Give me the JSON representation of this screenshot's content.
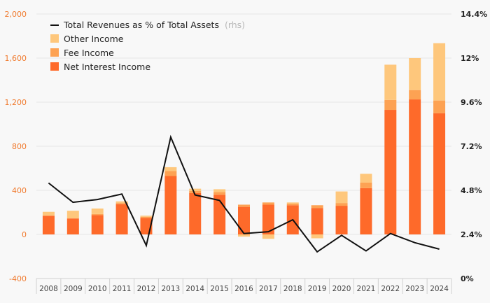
{
  "chart_data": {
    "type": "bar",
    "stacked": true,
    "categories": [
      "2008",
      "2009",
      "2010",
      "2011",
      "2012",
      "2013",
      "2014",
      "2015",
      "2016",
      "2017",
      "2018",
      "2019",
      "2020",
      "2021",
      "2022",
      "2023",
      "2024"
    ],
    "series": [
      {
        "name": "Net Interest Income",
        "color": "#fe6a2a",
        "values": [
          170,
          145,
          175,
          275,
          150,
          530,
          375,
          360,
          250,
          270,
          265,
          240,
          260,
          420,
          1130,
          1225,
          1100
        ]
      },
      {
        "name": "Fee Income",
        "color": "#fda253",
        "values": [
          0,
          0,
          10,
          10,
          10,
          45,
          20,
          25,
          20,
          20,
          15,
          25,
          25,
          50,
          90,
          85,
          115
        ]
      },
      {
        "name": "Other Income",
        "color": "#fec77c",
        "values": [
          35,
          70,
          50,
          15,
          10,
          35,
          20,
          25,
          -20,
          -40,
          10,
          -35,
          105,
          80,
          320,
          290,
          520
        ]
      }
    ],
    "line": {
      "name": "Total Revenues as % of Total Assets",
      "suffix": "(rhs)",
      "color": "#111111",
      "values": [
        5.2,
        4.15,
        4.3,
        4.6,
        1.8,
        7.7,
        4.55,
        4.25,
        2.45,
        2.55,
        3.2,
        1.45,
        2.35,
        1.5,
        2.45,
        1.95,
        1.6
      ]
    },
    "y_left": {
      "min": -400,
      "max": 2000,
      "step": 400,
      "tick_labels": [
        "-400",
        "0",
        "400",
        "800",
        "1,200",
        "1,600",
        "2,000"
      ]
    },
    "y_right": {
      "min": 0,
      "max": 14.4,
      "step": 2.4,
      "tick_labels": [
        "0%",
        "2.4%",
        "4.8%",
        "7.2%",
        "9.6%",
        "12%",
        "14.4%"
      ]
    },
    "legend": {
      "position": "top-left",
      "order": [
        "line",
        "Other Income",
        "Fee Income",
        "Net Interest Income"
      ]
    },
    "colors": {
      "left_axis": "#f07a2e",
      "right_axis": "#222222",
      "background": "#f8f8f8"
    }
  }
}
